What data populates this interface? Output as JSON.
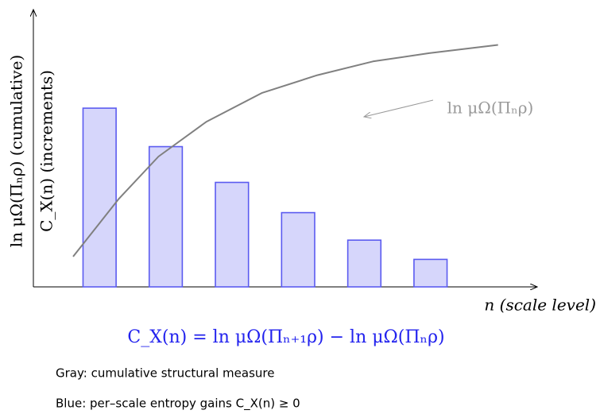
{
  "chart_data": {
    "type": "bar",
    "x": [
      0,
      1,
      2,
      3,
      4,
      5
    ],
    "values": [
      65,
      51,
      38,
      27,
      17,
      10
    ],
    "color": "#5b5bf0",
    "curve": {
      "name": "ln μΩ(Πₙρ)",
      "color": "#808080",
      "x": [
        -0.4,
        0.29,
        0.89,
        1.61,
        2.45,
        3.29,
        4.13,
        4.98,
        6.02
      ],
      "values": [
        11,
        32,
        47.4,
        60,
        70.5,
        77,
        82,
        85,
        88
      ]
    },
    "xlim": [
      -1,
      6.6
    ],
    "ylim": [
      0,
      100
    ],
    "x_label": "n (scale level)",
    "y_label": [
      "ln μΩ(Πₙρ) (cumulative)",
      "C_X(n) (increments)"
    ],
    "formula": "C_X(n) = ln μΩ(Πₙ₊₁ρ) − ln μΩ(Πₙρ)",
    "notes": [
      "Gray: cumulative structural measure",
      "Blue: per–scale entropy gains C_X(n) ≥ 0"
    ]
  }
}
